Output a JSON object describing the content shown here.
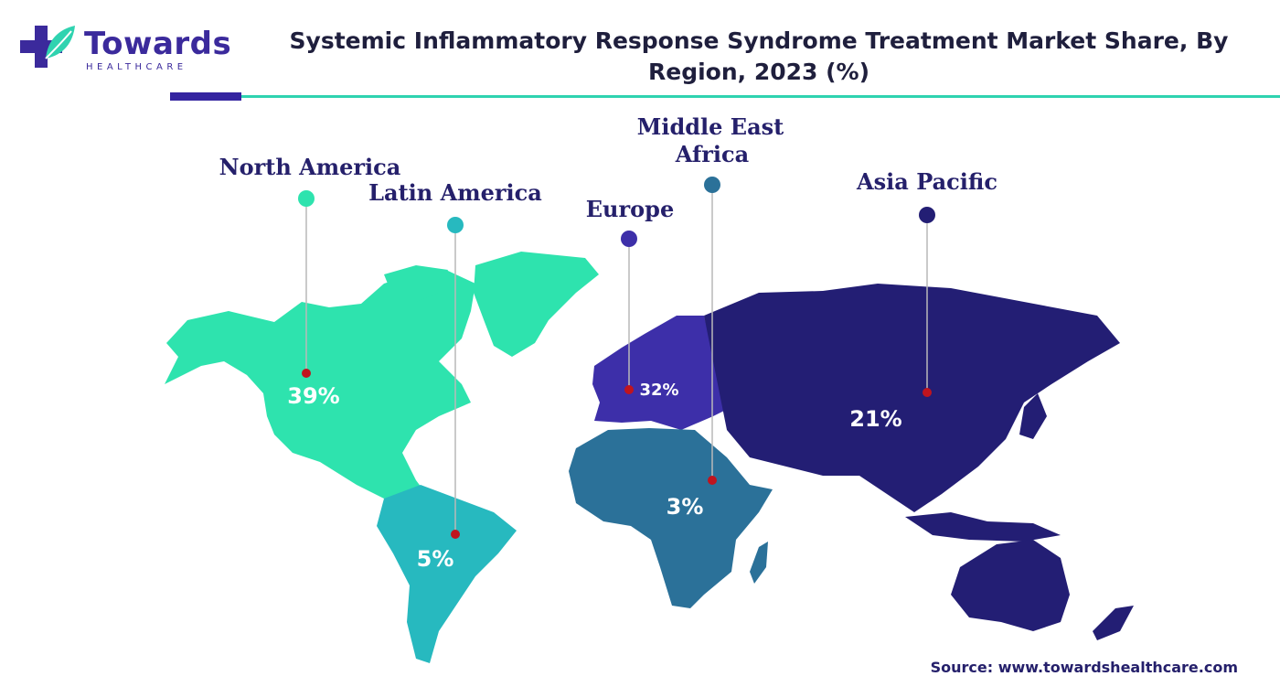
{
  "logo": {
    "name": "Towards",
    "sub": "HEALTHCARE"
  },
  "title": "Systemic Inflammatory Response Syndrome Treatment Market Share, By Region, 2023 (%)",
  "source": "Source: www.towardshealthcare.com",
  "colors": {
    "north_america": "#2ee3ae",
    "latin_america": "#27b9bf",
    "europe": "#3d2fa9",
    "mea": "#2b7199",
    "asia_pacific": "#231e74",
    "marker": "#c0141e"
  },
  "regions": [
    {
      "name": "North America",
      "share": "39%"
    },
    {
      "name": "Latin America",
      "share": "5%"
    },
    {
      "name": "Europe",
      "share": "32%"
    },
    {
      "name": "Middle East Africa",
      "name_line1": "Middle East",
      "name_line2": "Africa",
      "share": "3%"
    },
    {
      "name": "Asia Pacific",
      "share": "21%"
    }
  ]
}
